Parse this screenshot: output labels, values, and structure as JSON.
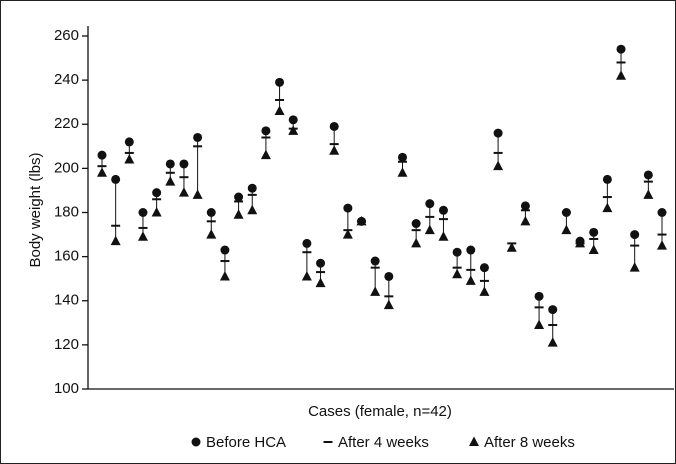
{
  "chart_data": {
    "type": "scatter",
    "y_label": "Body weight (lbs)",
    "x_label": "Cases (female, n=42)",
    "ylim": [
      100,
      260
    ],
    "yticks": [
      100,
      120,
      140,
      160,
      180,
      200,
      220,
      240,
      260
    ],
    "series": [
      {
        "name": "Before HCA",
        "marker": "circle",
        "color": "#111111",
        "values": [
          206,
          195,
          212,
          180,
          189,
          202,
          202,
          214,
          180,
          163,
          187,
          191,
          217,
          239,
          222,
          166,
          157,
          219,
          182,
          176,
          158,
          151,
          205,
          175,
          184,
          181,
          162,
          163,
          155,
          216,
          null,
          183,
          142,
          136,
          180,
          167,
          171,
          195,
          254,
          170,
          197,
          180
        ]
      },
      {
        "name": "After 4 weeks",
        "marker": "dash",
        "color": "#111111",
        "values": [
          201,
          174,
          207,
          173,
          186,
          198,
          196,
          210,
          176,
          158,
          185,
          188,
          214,
          231,
          218,
          162,
          153,
          211,
          172,
          176,
          155,
          142,
          203,
          172,
          178,
          177,
          155,
          154,
          149,
          207,
          166,
          181,
          137,
          129,
          180,
          166,
          168,
          187,
          248,
          165,
          194,
          170
        ]
      },
      {
        "name": "After 8 weeks",
        "marker": "triangle",
        "color": "#111111",
        "values": [
          198,
          167,
          204,
          169,
          180,
          194,
          189,
          188,
          170,
          151,
          179,
          181,
          206,
          226,
          217,
          151,
          148,
          208,
          170,
          176,
          144,
          138,
          198,
          166,
          172,
          169,
          152,
          149,
          144,
          201,
          164,
          176,
          129,
          121,
          172,
          166,
          163,
          182,
          242,
          155,
          188,
          165
        ]
      }
    ]
  }
}
